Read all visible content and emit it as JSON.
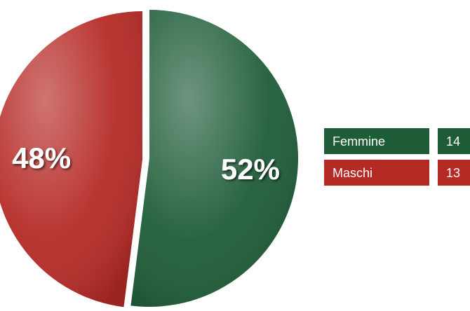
{
  "chart_data": {
    "type": "pie",
    "categories": [
      "Femmine",
      "Maschi"
    ],
    "values": [
      52,
      48
    ],
    "value_labels": [
      "52%",
      "48%"
    ],
    "counts": [
      14,
      13
    ],
    "colors": [
      "#1e5c38",
      "#b52a25"
    ]
  }
}
